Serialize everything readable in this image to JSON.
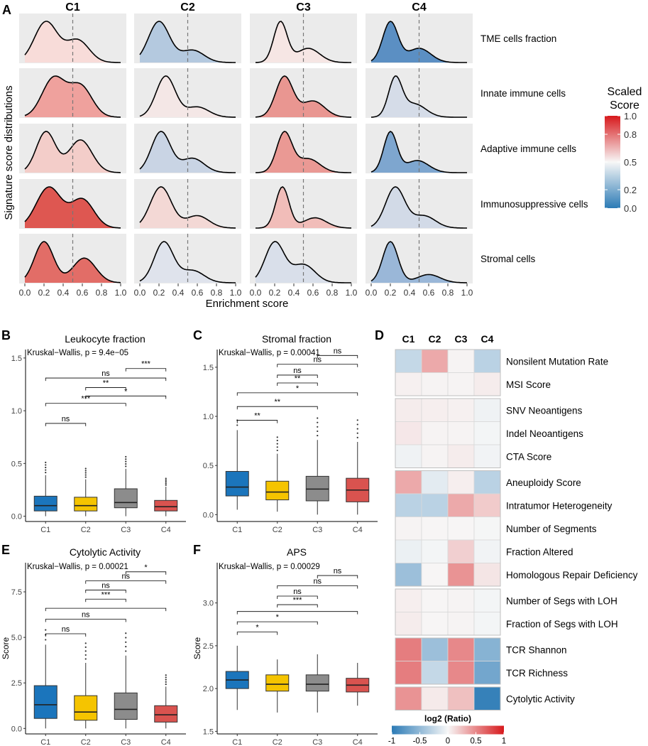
{
  "panel_letters": {
    "a": "A",
    "b": "B",
    "c": "C",
    "d": "D",
    "e": "E",
    "f": "F"
  },
  "panelA": {
    "clusters": [
      "C1",
      "C2",
      "C3",
      "C4"
    ],
    "rows": [
      "TME cells fraction",
      "Innate immune cells",
      "Adaptive immune cells",
      "Immunosuppressive cells",
      "Stromal cells"
    ],
    "fill_colors": [
      [
        "#f8dcd9",
        "#b4c9df",
        "#f6e6e4",
        "#5b8fc3"
      ],
      [
        "#efa19d",
        "#f4e7e6",
        "#e99691",
        "#d5dce8"
      ],
      [
        "#f3cdc9",
        "#c9d4e4",
        "#ea9994",
        "#7ea6cf"
      ],
      [
        "#de5751",
        "#f3d8d5",
        "#f1bdb9",
        "#d2dae7"
      ],
      [
        "#e26d67",
        "#dfe3ec",
        "#d9dfea",
        "#9ab7d8"
      ]
    ],
    "x_ticks": [
      "0.0",
      "0.2",
      "0.4",
      "0.6",
      "0.8",
      "1.0"
    ],
    "x_tick_values": [
      0,
      0.2,
      0.4,
      0.6,
      0.8,
      1.0
    ],
    "xlabel": "Enrichment score",
    "ylabel": "Signature score distributions",
    "dashed_line_at": 0.5,
    "legend": {
      "title_line1": "Scaled",
      "title_line2": "Score",
      "ticks": [
        "1.0",
        "0.8",
        "0.5",
        "0.2",
        "0.0"
      ],
      "tick_values": [
        1.0,
        0.8,
        0.5,
        0.2,
        0.0
      ],
      "color_high": "#d7191c",
      "color_mid": "#f7f7f7",
      "color_low": "#2c7bb6"
    }
  },
  "boxplots": [
    {
      "letter": "B",
      "title": "Leukocyte fraction",
      "stat": "Kruskal−Wallis, p = 9.4e−05",
      "ylabel": "",
      "categories": [
        "C1",
        "C2",
        "C3",
        "C4"
      ],
      "yticks": [
        "0.0",
        "0.5",
        "1.0",
        "1.5"
      ],
      "ytick_values": [
        0,
        0.5,
        1.0,
        1.5
      ],
      "ylim": [
        -0.05,
        1.58
      ],
      "boxes": [
        {
          "q1": 0.05,
          "med": 0.1,
          "q3": 0.19,
          "wlo": 0,
          "whi": 0.39
        },
        {
          "q1": 0.05,
          "med": 0.1,
          "q3": 0.18,
          "wlo": 0,
          "whi": 0.35
        },
        {
          "q1": 0.08,
          "med": 0.13,
          "q3": 0.26,
          "wlo": 0,
          "whi": 0.45
        },
        {
          "q1": 0.05,
          "med": 0.09,
          "q3": 0.15,
          "wlo": 0,
          "whi": 0.28
        }
      ],
      "brackets": [
        {
          "from": 0,
          "to": 1,
          "y": 0.88,
          "label": "ns"
        },
        {
          "from": 0,
          "to": 2,
          "y": 1.07,
          "label": "***"
        },
        {
          "from": 1,
          "to": 3,
          "y": 1.14,
          "label": "*"
        },
        {
          "from": 1,
          "to": 2,
          "y": 1.22,
          "label": "**"
        },
        {
          "from": 0,
          "to": 3,
          "y": 1.31,
          "label": "ns"
        },
        {
          "from": 2,
          "to": 3,
          "y": 1.4,
          "label": "***"
        }
      ]
    },
    {
      "letter": "C",
      "title": "Stromal fraction",
      "stat": "Kruskal−Wallis, p = 0.00041",
      "ylabel": "",
      "categories": [
        "C1",
        "C2",
        "C3",
        "C4"
      ],
      "yticks": [
        "0.0",
        "0.5",
        "1.0",
        "1.5"
      ],
      "ytick_values": [
        0,
        0.5,
        1.0,
        1.5
      ],
      "ylim": [
        -0.07,
        1.68
      ],
      "boxes": [
        {
          "q1": 0.19,
          "med": 0.28,
          "q3": 0.44,
          "wlo": 0.05,
          "whi": 0.86
        },
        {
          "q1": 0.15,
          "med": 0.23,
          "q3": 0.34,
          "wlo": 0.03,
          "whi": 0.62
        },
        {
          "q1": 0.14,
          "med": 0.26,
          "q3": 0.39,
          "wlo": 0,
          "whi": 0.76
        },
        {
          "q1": 0.13,
          "med": 0.25,
          "q3": 0.37,
          "wlo": 0,
          "whi": 0.74
        }
      ],
      "brackets": [
        {
          "from": 0,
          "to": 1,
          "y": 0.96,
          "label": "**"
        },
        {
          "from": 0,
          "to": 2,
          "y": 1.1,
          "label": "**"
        },
        {
          "from": 0,
          "to": 3,
          "y": 1.24,
          "label": "*"
        },
        {
          "from": 1,
          "to": 2,
          "y": 1.34,
          "label": "**"
        },
        {
          "from": 1,
          "to": 2,
          "y": 1.42,
          "label": "ns"
        },
        {
          "from": 1,
          "to": 3,
          "y": 1.53,
          "label": "ns"
        },
        {
          "from": 2,
          "to": 3,
          "y": 1.62,
          "label": "ns"
        }
      ]
    },
    {
      "letter": "E",
      "title": "Cytolytic Activity",
      "stat": "Kruskal−Wallis, p = 0.00021",
      "ylabel": "Score",
      "categories": [
        "C1",
        "C2",
        "C3",
        "C4"
      ],
      "yticks": [
        "0.0",
        "2.5",
        "5.0",
        "7.5"
      ],
      "ytick_values": [
        0,
        2.5,
        5.0,
        7.5
      ],
      "ylim": [
        -0.3,
        9.1
      ],
      "boxes": [
        {
          "q1": 0.55,
          "med": 1.3,
          "q3": 2.35,
          "wlo": 0,
          "whi": 4.6
        },
        {
          "q1": 0.45,
          "med": 0.9,
          "q3": 1.8,
          "wlo": 0,
          "whi": 3.6
        },
        {
          "q1": 0.5,
          "med": 1.05,
          "q3": 1.95,
          "wlo": 0,
          "whi": 4.0
        },
        {
          "q1": 0.35,
          "med": 0.75,
          "q3": 1.25,
          "wlo": 0,
          "whi": 2.3
        }
      ],
      "brackets": [
        {
          "from": 0,
          "to": 1,
          "y": 5.2,
          "label": "ns"
        },
        {
          "from": 0,
          "to": 2,
          "y": 6.0,
          "label": "ns"
        },
        {
          "from": 0,
          "to": 3,
          "y": 6.6,
          "label": ""
        },
        {
          "from": 1,
          "to": 2,
          "y": 7.1,
          "label": "***"
        },
        {
          "from": 1,
          "to": 2,
          "y": 7.6,
          "label": "ns"
        },
        {
          "from": 1,
          "to": 3,
          "y": 8.1,
          "label": "ns"
        },
        {
          "from": 2,
          "to": 3,
          "y": 8.6,
          "label": "*"
        }
      ]
    },
    {
      "letter": "F",
      "title": "APS",
      "stat": "Kruskal−Wallis, p = 0.00029",
      "ylabel": "Score",
      "categories": [
        "C1",
        "C2",
        "C3",
        "C4"
      ],
      "yticks": [
        "1.5",
        "2.0",
        "2.5",
        "3.0"
      ],
      "ytick_values": [
        1.5,
        2.0,
        2.5,
        3.0
      ],
      "ylim": [
        1.47,
        3.47
      ],
      "boxes": [
        {
          "q1": 2.0,
          "med": 2.1,
          "q3": 2.2,
          "wlo": 1.75,
          "whi": 2.5
        },
        {
          "q1": 1.97,
          "med": 2.05,
          "q3": 2.16,
          "wlo": 1.72,
          "whi": 2.34
        },
        {
          "q1": 1.97,
          "med": 2.05,
          "q3": 2.16,
          "wlo": 1.72,
          "whi": 2.4
        },
        {
          "q1": 1.96,
          "med": 2.04,
          "q3": 2.12,
          "wlo": 1.8,
          "whi": 2.3
        }
      ],
      "brackets": [
        {
          "from": 0,
          "to": 1,
          "y": 2.66,
          "label": "*"
        },
        {
          "from": 0,
          "to": 2,
          "y": 2.78,
          "label": "*"
        },
        {
          "from": 0,
          "to": 3,
          "y": 2.9,
          "label": ""
        },
        {
          "from": 1,
          "to": 2,
          "y": 2.98,
          "label": "***"
        },
        {
          "from": 1,
          "to": 2,
          "y": 3.08,
          "label": "ns"
        },
        {
          "from": 1,
          "to": 3,
          "y": 3.2,
          "label": "ns"
        },
        {
          "from": 2,
          "to": 3,
          "y": 3.32,
          "label": "ns"
        }
      ]
    }
  ],
  "panelD": {
    "columns": [
      "C1",
      "C2",
      "C3",
      "C4"
    ],
    "groups": [
      [
        {
          "label": "Nonsilent Mutation Rate",
          "values": [
            -0.25,
            0.35,
            0.02,
            -0.3
          ]
        },
        {
          "label": "MSI Score",
          "values": [
            0.03,
            0.02,
            0.02,
            0.05
          ]
        }
      ],
      [
        {
          "label": "SNV Neoantigens",
          "values": [
            0.05,
            0.04,
            0.03,
            -0.04
          ]
        },
        {
          "label": "Indel Neoantigens",
          "values": [
            0.07,
            0.02,
            0.02,
            -0.02
          ]
        },
        {
          "label": "CTA Score",
          "values": [
            -0.04,
            0.02,
            0.05,
            -0.03
          ]
        }
      ],
      [
        {
          "label": "Aneuploidy Score",
          "values": [
            0.35,
            -0.1,
            0.04,
            -0.3
          ]
        },
        {
          "label": "Intratumor Heterogeneity",
          "values": [
            -0.3,
            -0.3,
            0.35,
            0.2
          ]
        },
        {
          "label": "Number of Segments",
          "values": [
            0.02,
            0.01,
            0.01,
            -0.01
          ]
        },
        {
          "label": "Fraction Altered",
          "values": [
            -0.06,
            -0.02,
            0.18,
            -0.03
          ]
        },
        {
          "label": "Homologous Repair Deficiency",
          "values": [
            -0.45,
            0.01,
            0.45,
            0.08
          ]
        }
      ],
      [
        {
          "label": "Number of Segs with LOH",
          "values": [
            0.04,
            0.01,
            0.02,
            -0.02
          ]
        },
        {
          "label": "Fraction of Segs with LOH",
          "values": [
            0.05,
            0.01,
            0.02,
            -0.02
          ]
        }
      ],
      [
        {
          "label": "TCR Shannon",
          "values": [
            0.55,
            -0.45,
            0.5,
            -0.55
          ]
        },
        {
          "label": "TCR Richness",
          "values": [
            0.55,
            -0.25,
            0.5,
            -0.65
          ]
        }
      ],
      [
        {
          "label": "Cytolytic Activity",
          "values": [
            0.45,
            0.06,
            0.25,
            -0.95
          ]
        }
      ]
    ],
    "legend_title": "log2 (Ratio)",
    "legend_ticks": [
      "-1",
      "-0.5",
      "0",
      "0.5",
      "1"
    ],
    "legend_tick_values": [
      -1,
      -0.5,
      0,
      0.5,
      1
    ]
  }
}
